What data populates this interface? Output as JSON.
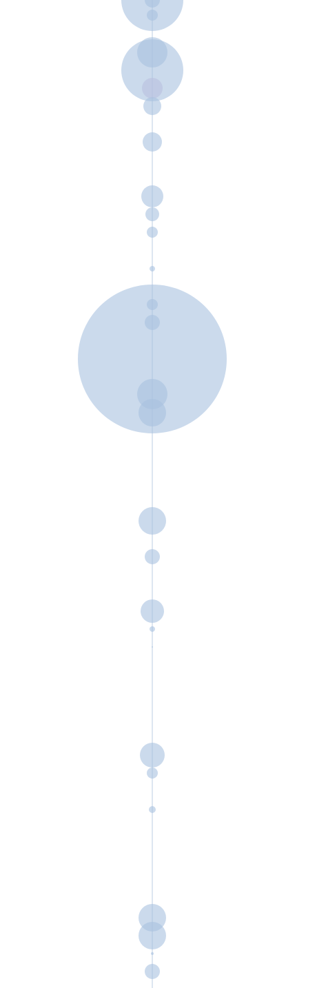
{
  "chart_data": {
    "type": "scatter",
    "title": "",
    "xlabel": "",
    "ylabel": "",
    "grid": false,
    "legend": "none",
    "colors": {
      "bubble_fill": "#a9c1df",
      "bubble_fill_alt": "#b9bfe0",
      "axis_line": "#dde6f1",
      "background": "#ffffff"
    },
    "bubble_opacity": 0.6,
    "series": [
      {
        "points": [
          {
            "y": 0,
            "r": 45,
            "alt": false
          },
          {
            "y": 0,
            "r": 11,
            "alt": false
          },
          {
            "y": 22,
            "r": 8,
            "alt": false
          },
          {
            "y": 102,
            "r": 45,
            "alt": false
          },
          {
            "y": 76,
            "r": 22,
            "alt": false
          },
          {
            "y": 128,
            "r": 15,
            "alt": true
          },
          {
            "y": 154,
            "r": 13,
            "alt": false
          },
          {
            "y": 206,
            "r": 14,
            "alt": false
          },
          {
            "y": 285,
            "r": 16,
            "alt": false
          },
          {
            "y": 311,
            "r": 10,
            "alt": false
          },
          {
            "y": 337,
            "r": 8,
            "alt": false
          },
          {
            "y": 390,
            "r": 4,
            "alt": false
          },
          {
            "y": 521,
            "r": 108,
            "alt": false
          },
          {
            "y": 442,
            "r": 8,
            "alt": false
          },
          {
            "y": 468,
            "r": 11,
            "alt": false
          },
          {
            "y": 572,
            "r": 22,
            "alt": false
          },
          {
            "y": 599,
            "r": 20,
            "alt": false
          },
          {
            "y": 756,
            "r": 20,
            "alt": false
          },
          {
            "y": 808,
            "r": 11,
            "alt": false
          },
          {
            "y": 887,
            "r": 17,
            "alt": false
          },
          {
            "y": 913,
            "r": 4,
            "alt": false
          },
          {
            "y": 939,
            "r": 1,
            "alt": false
          },
          {
            "y": 1096,
            "r": 18,
            "alt": false
          },
          {
            "y": 1122,
            "r": 8,
            "alt": false
          },
          {
            "y": 1175,
            "r": 5,
            "alt": false
          },
          {
            "y": 1332,
            "r": 20,
            "alt": false
          },
          {
            "y": 1358,
            "r": 20,
            "alt": false
          },
          {
            "y": 1384,
            "r": 2,
            "alt": false
          },
          {
            "y": 1410,
            "r": 11,
            "alt": false
          }
        ]
      }
    ]
  }
}
